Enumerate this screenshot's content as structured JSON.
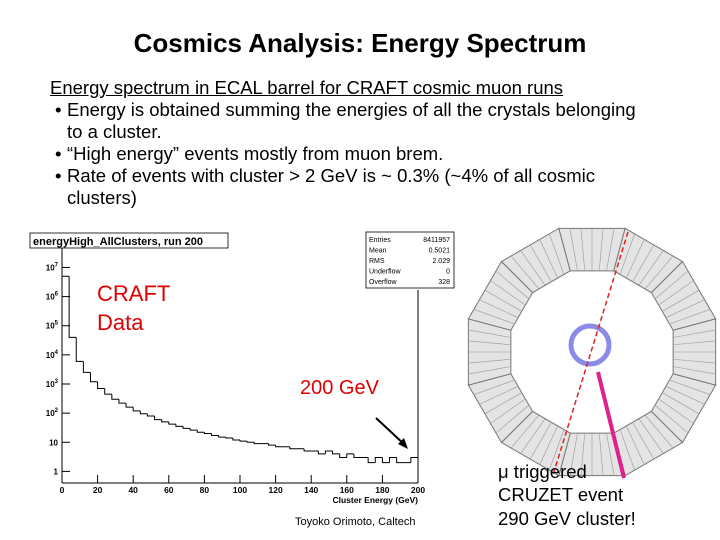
{
  "title": "Cosmics Analysis: Energy Spectrum",
  "intro": "Energy spectrum in ECAL barrel for CRAFT cosmic muon runs",
  "bullets": [
    "Energy is obtained summing the energies of all the crystals belonging to a cluster.",
    "“High energy” events mostly from muon brem.",
    "Rate of events with cluster > 2 GeV is ~ 0.3% (~4% of all cosmic clusters)"
  ],
  "chart_data": {
    "type": "histogram",
    "title": "energyHigh_AllClusters, run 200",
    "xlabel": "Cluster Energy (GeV)",
    "color": "#000000",
    "log_y": true,
    "bins": [
      0,
      4,
      8,
      12,
      16,
      20,
      24,
      28,
      32,
      36,
      40,
      44,
      48,
      52,
      56,
      60,
      64,
      68,
      72,
      76,
      80,
      84,
      88,
      92,
      96,
      100,
      104,
      108,
      112,
      116,
      120,
      124,
      128,
      132,
      136,
      140,
      144,
      148,
      152,
      156,
      160,
      164,
      168,
      172,
      176,
      180,
      184,
      188,
      192,
      196,
      200
    ],
    "counts": [
      5000000,
      40000,
      6000,
      2500,
      1200,
      700,
      450,
      300,
      220,
      160,
      120,
      95,
      80,
      60,
      50,
      42,
      35,
      30,
      26,
      22,
      20,
      17,
      15,
      14,
      12,
      11,
      10,
      9,
      9,
      8,
      7,
      7,
      6,
      6,
      5,
      5,
      4,
      5,
      4,
      3,
      4,
      3,
      3,
      2,
      3,
      2,
      3,
      2,
      2,
      3
    ],
    "xlim": [
      0,
      200
    ],
    "xticks": [
      0,
      20,
      40,
      60,
      80,
      100,
      120,
      140,
      160,
      180,
      200
    ],
    "ylim": [
      0.4,
      130000000
    ],
    "yticks": [
      {
        "value": 10000000,
        "label": "10",
        "exp": "7"
      },
      {
        "value": 1000000,
        "label": "10",
        "exp": "6"
      },
      {
        "value": 100000,
        "label": "10",
        "exp": "5"
      },
      {
        "value": 10000,
        "label": "10",
        "exp": "4"
      },
      {
        "value": 1000,
        "label": "10",
        "exp": "3"
      },
      {
        "value": 100,
        "label": "10",
        "exp": "2"
      },
      10,
      1
    ],
    "stats": [
      {
        "name": "Entries",
        "value": 8411957
      },
      {
        "name": "Mean",
        "value": 0.5021
      },
      {
        "name": "RMS",
        "value": 2.029
      },
      {
        "name": "Underflow",
        "value": 0
      },
      {
        "name": "Overflow",
        "value": 328
      }
    ]
  },
  "annotations": {
    "craft": [
      "CRAFT",
      "Data"
    ],
    "energy": "200 GeV"
  },
  "caption": [
    "μ triggered",
    "CRUZET event",
    "290 GeV cluster!"
  ],
  "footer": "Toyoko Orimoto, Caltech"
}
